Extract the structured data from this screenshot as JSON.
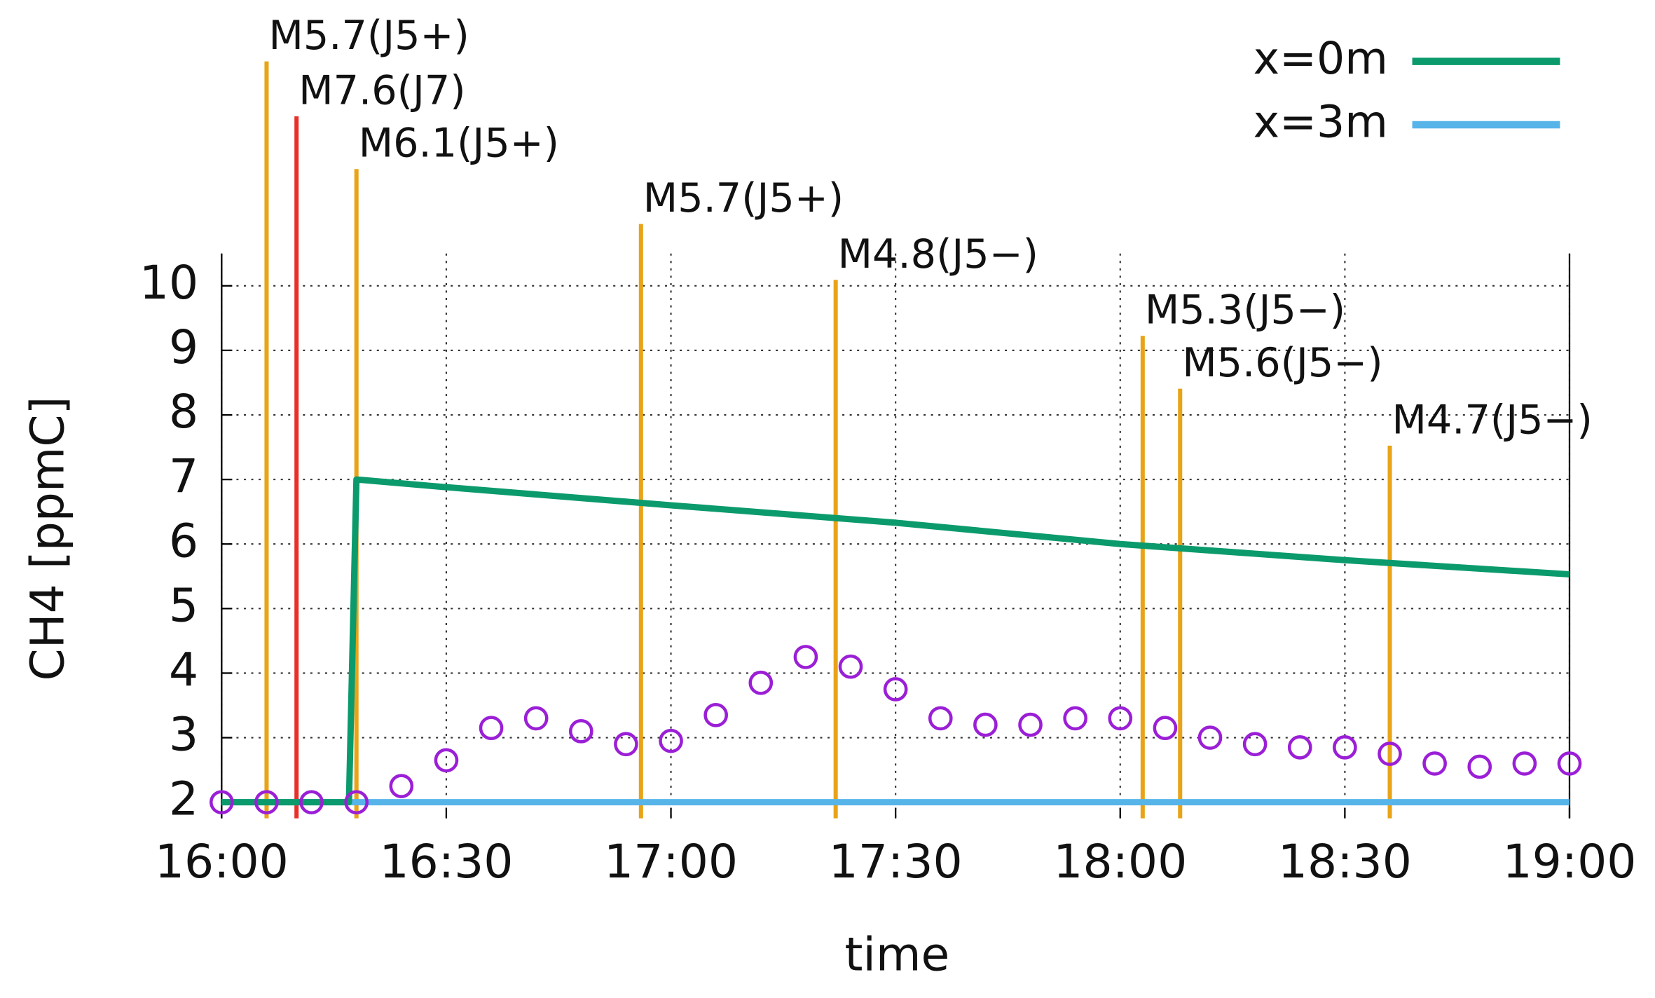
{
  "chart_data": {
    "type": "line",
    "xlabel": "time",
    "ylabel": "CH4 [ppmC]",
    "xlim": [
      960,
      1140
    ],
    "ylim": [
      1.75,
      10.5
    ],
    "xticks": [
      {
        "value": 960,
        "label": "16:00"
      },
      {
        "value": 990,
        "label": "16:30"
      },
      {
        "value": 1020,
        "label": "17:00"
      },
      {
        "value": 1050,
        "label": "17:30"
      },
      {
        "value": 1080,
        "label": "18:00"
      },
      {
        "value": 1110,
        "label": "18:30"
      },
      {
        "value": 1140,
        "label": "19:00"
      }
    ],
    "yticks": [
      2,
      3,
      4,
      5,
      6,
      7,
      8,
      9,
      10
    ],
    "grid": true,
    "legend": "upper right",
    "series": [
      {
        "name": "x=0m",
        "color": "#0b9a6c",
        "x": [
          960,
          977,
          978,
          990,
          1020,
          1050,
          1080,
          1110,
          1140
        ],
        "values": [
          2,
          2,
          7,
          6.88,
          6.6,
          6.33,
          6.0,
          5.75,
          5.53
        ]
      },
      {
        "name": "x=3m",
        "color": "#56b4e9",
        "x": [
          960,
          1140
        ],
        "values": [
          2,
          2
        ]
      }
    ],
    "scatter": {
      "color": "#9b1fd6",
      "x": [
        960,
        966,
        972,
        978,
        984,
        990,
        996,
        1002,
        1008,
        1014,
        1020,
        1026,
        1032,
        1038,
        1044,
        1050,
        1056,
        1062,
        1068,
        1074,
        1080,
        1086,
        1092,
        1098,
        1104,
        1110,
        1116,
        1122,
        1128,
        1134,
        1140
      ],
      "values": [
        2.0,
        2.0,
        2.0,
        2.0,
        2.25,
        2.65,
        3.15,
        3.3,
        3.1,
        2.9,
        2.95,
        3.35,
        3.85,
        4.25,
        4.1,
        3.75,
        3.3,
        3.2,
        3.2,
        3.3,
        3.3,
        3.15,
        3.0,
        2.9,
        2.85,
        2.85,
        2.75,
        2.6,
        2.55,
        2.6,
        2.6
      ]
    },
    "events": [
      {
        "x": 966,
        "label": "M5.7(J5+)",
        "color": "#e8a317"
      },
      {
        "x": 970,
        "label": "M7.6(J7)",
        "color": "#e8302a"
      },
      {
        "x": 978,
        "label": "M6.1(J5+)",
        "color": "#e8a317"
      },
      {
        "x": 1016,
        "label": "M5.7(J5+)",
        "color": "#e8a317"
      },
      {
        "x": 1042,
        "label": "M4.8(J5−)",
        "color": "#e8a317"
      },
      {
        "x": 1083,
        "label": "M5.3(J5−)",
        "color": "#e8a317"
      },
      {
        "x": 1088,
        "label": "M5.6(J5−)",
        "color": "#e8a317"
      },
      {
        "x": 1116,
        "label": "M4.7(J5−)",
        "color": "#e8a317"
      }
    ]
  }
}
